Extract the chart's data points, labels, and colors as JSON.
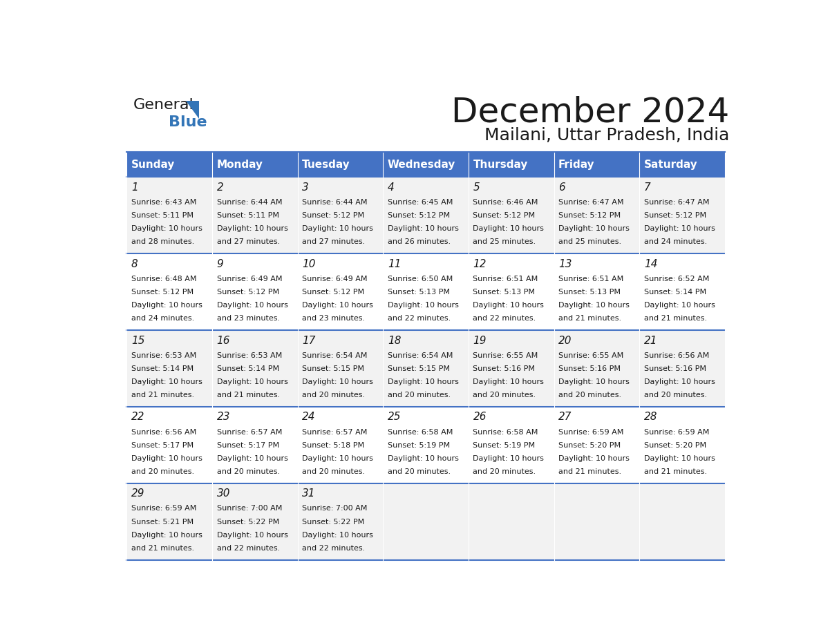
{
  "title": "December 2024",
  "subtitle": "Mailani, Uttar Pradesh, India",
  "header_bg": "#4472C4",
  "header_text_color": "#FFFFFF",
  "cell_bg_odd": "#F2F2F2",
  "cell_bg_even": "#FFFFFF",
  "border_color": "#4472C4",
  "day_names": [
    "Sunday",
    "Monday",
    "Tuesday",
    "Wednesday",
    "Thursday",
    "Friday",
    "Saturday"
  ],
  "calendar": [
    [
      {
        "day": 1,
        "sunrise": "6:43 AM",
        "sunset": "5:11 PM",
        "daylight_line1": "Daylight: 10 hours",
        "daylight_line2": "and 28 minutes."
      },
      {
        "day": 2,
        "sunrise": "6:44 AM",
        "sunset": "5:11 PM",
        "daylight_line1": "Daylight: 10 hours",
        "daylight_line2": "and 27 minutes."
      },
      {
        "day": 3,
        "sunrise": "6:44 AM",
        "sunset": "5:12 PM",
        "daylight_line1": "Daylight: 10 hours",
        "daylight_line2": "and 27 minutes."
      },
      {
        "day": 4,
        "sunrise": "6:45 AM",
        "sunset": "5:12 PM",
        "daylight_line1": "Daylight: 10 hours",
        "daylight_line2": "and 26 minutes."
      },
      {
        "day": 5,
        "sunrise": "6:46 AM",
        "sunset": "5:12 PM",
        "daylight_line1": "Daylight: 10 hours",
        "daylight_line2": "and 25 minutes."
      },
      {
        "day": 6,
        "sunrise": "6:47 AM",
        "sunset": "5:12 PM",
        "daylight_line1": "Daylight: 10 hours",
        "daylight_line2": "and 25 minutes."
      },
      {
        "day": 7,
        "sunrise": "6:47 AM",
        "sunset": "5:12 PM",
        "daylight_line1": "Daylight: 10 hours",
        "daylight_line2": "and 24 minutes."
      }
    ],
    [
      {
        "day": 8,
        "sunrise": "6:48 AM",
        "sunset": "5:12 PM",
        "daylight_line1": "Daylight: 10 hours",
        "daylight_line2": "and 24 minutes."
      },
      {
        "day": 9,
        "sunrise": "6:49 AM",
        "sunset": "5:12 PM",
        "daylight_line1": "Daylight: 10 hours",
        "daylight_line2": "and 23 minutes."
      },
      {
        "day": 10,
        "sunrise": "6:49 AM",
        "sunset": "5:12 PM",
        "daylight_line1": "Daylight: 10 hours",
        "daylight_line2": "and 23 minutes."
      },
      {
        "day": 11,
        "sunrise": "6:50 AM",
        "sunset": "5:13 PM",
        "daylight_line1": "Daylight: 10 hours",
        "daylight_line2": "and 22 minutes."
      },
      {
        "day": 12,
        "sunrise": "6:51 AM",
        "sunset": "5:13 PM",
        "daylight_line1": "Daylight: 10 hours",
        "daylight_line2": "and 22 minutes."
      },
      {
        "day": 13,
        "sunrise": "6:51 AM",
        "sunset": "5:13 PM",
        "daylight_line1": "Daylight: 10 hours",
        "daylight_line2": "and 21 minutes."
      },
      {
        "day": 14,
        "sunrise": "6:52 AM",
        "sunset": "5:14 PM",
        "daylight_line1": "Daylight: 10 hours",
        "daylight_line2": "and 21 minutes."
      }
    ],
    [
      {
        "day": 15,
        "sunrise": "6:53 AM",
        "sunset": "5:14 PM",
        "daylight_line1": "Daylight: 10 hours",
        "daylight_line2": "and 21 minutes."
      },
      {
        "day": 16,
        "sunrise": "6:53 AM",
        "sunset": "5:14 PM",
        "daylight_line1": "Daylight: 10 hours",
        "daylight_line2": "and 21 minutes."
      },
      {
        "day": 17,
        "sunrise": "6:54 AM",
        "sunset": "5:15 PM",
        "daylight_line1": "Daylight: 10 hours",
        "daylight_line2": "and 20 minutes."
      },
      {
        "day": 18,
        "sunrise": "6:54 AM",
        "sunset": "5:15 PM",
        "daylight_line1": "Daylight: 10 hours",
        "daylight_line2": "and 20 minutes."
      },
      {
        "day": 19,
        "sunrise": "6:55 AM",
        "sunset": "5:16 PM",
        "daylight_line1": "Daylight: 10 hours",
        "daylight_line2": "and 20 minutes."
      },
      {
        "day": 20,
        "sunrise": "6:55 AM",
        "sunset": "5:16 PM",
        "daylight_line1": "Daylight: 10 hours",
        "daylight_line2": "and 20 minutes."
      },
      {
        "day": 21,
        "sunrise": "6:56 AM",
        "sunset": "5:16 PM",
        "daylight_line1": "Daylight: 10 hours",
        "daylight_line2": "and 20 minutes."
      }
    ],
    [
      {
        "day": 22,
        "sunrise": "6:56 AM",
        "sunset": "5:17 PM",
        "daylight_line1": "Daylight: 10 hours",
        "daylight_line2": "and 20 minutes."
      },
      {
        "day": 23,
        "sunrise": "6:57 AM",
        "sunset": "5:17 PM",
        "daylight_line1": "Daylight: 10 hours",
        "daylight_line2": "and 20 minutes."
      },
      {
        "day": 24,
        "sunrise": "6:57 AM",
        "sunset": "5:18 PM",
        "daylight_line1": "Daylight: 10 hours",
        "daylight_line2": "and 20 minutes."
      },
      {
        "day": 25,
        "sunrise": "6:58 AM",
        "sunset": "5:19 PM",
        "daylight_line1": "Daylight: 10 hours",
        "daylight_line2": "and 20 minutes."
      },
      {
        "day": 26,
        "sunrise": "6:58 AM",
        "sunset": "5:19 PM",
        "daylight_line1": "Daylight: 10 hours",
        "daylight_line2": "and 20 minutes."
      },
      {
        "day": 27,
        "sunrise": "6:59 AM",
        "sunset": "5:20 PM",
        "daylight_line1": "Daylight: 10 hours",
        "daylight_line2": "and 21 minutes."
      },
      {
        "day": 28,
        "sunrise": "6:59 AM",
        "sunset": "5:20 PM",
        "daylight_line1": "Daylight: 10 hours",
        "daylight_line2": "and 21 minutes."
      }
    ],
    [
      {
        "day": 29,
        "sunrise": "6:59 AM",
        "sunset": "5:21 PM",
        "daylight_line1": "Daylight: 10 hours",
        "daylight_line2": "and 21 minutes."
      },
      {
        "day": 30,
        "sunrise": "7:00 AM",
        "sunset": "5:22 PM",
        "daylight_line1": "Daylight: 10 hours",
        "daylight_line2": "and 22 minutes."
      },
      {
        "day": 31,
        "sunrise": "7:00 AM",
        "sunset": "5:22 PM",
        "daylight_line1": "Daylight: 10 hours",
        "daylight_line2": "and 22 minutes."
      },
      null,
      null,
      null,
      null
    ]
  ],
  "logo_general_color": "#1a1a1a",
  "logo_blue_color": "#3375B7",
  "logo_triangle_color": "#3375B7"
}
